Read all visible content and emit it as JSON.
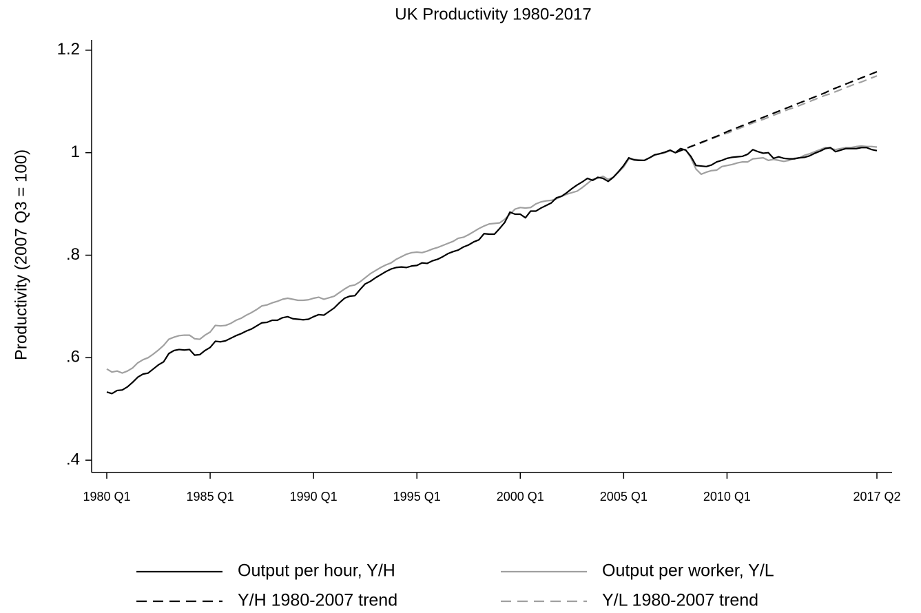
{
  "chart_data": {
    "type": "line",
    "title": "UK Productivity 1980-2017",
    "y_label": "Productivity (2007 Q3 = 100)",
    "categories": [
      "1980 Q1",
      null,
      null,
      null,
      null,
      null,
      null,
      null,
      null,
      null,
      null,
      null,
      null,
      null,
      null,
      null,
      null,
      null,
      null,
      null,
      "1985 Q1",
      null,
      null,
      null,
      null,
      null,
      null,
      null,
      null,
      null,
      null,
      null,
      null,
      null,
      null,
      null,
      null,
      null,
      null,
      null,
      "1990 Q1",
      null,
      null,
      null,
      null,
      null,
      null,
      null,
      null,
      null,
      null,
      null,
      null,
      null,
      null,
      null,
      null,
      null,
      null,
      null,
      "1995 Q1",
      null,
      null,
      null,
      null,
      null,
      null,
      null,
      null,
      null,
      null,
      null,
      null,
      null,
      null,
      null,
      null,
      null,
      null,
      null,
      "2000 Q1",
      null,
      null,
      null,
      null,
      null,
      null,
      null,
      null,
      null,
      null,
      null,
      null,
      null,
      null,
      null,
      null,
      null,
      null,
      null,
      "2005 Q1",
      null,
      null,
      null,
      null,
      null,
      null,
      null,
      null,
      null,
      null,
      null,
      null,
      null,
      null,
      null,
      null,
      null,
      null,
      null,
      "2010 Q1",
      null,
      null,
      null,
      null,
      null,
      null,
      null,
      null,
      null,
      null,
      null,
      null,
      null,
      null,
      null,
      null,
      null,
      null,
      null,
      null,
      null,
      null,
      null,
      null,
      null,
      null,
      null,
      null,
      "2017 Q2"
    ],
    "ylim": [
      0.376,
      1.22
    ],
    "yticks": [
      {
        "value": 0.4,
        "label": ".4"
      },
      {
        "value": 0.6,
        "label": ".6"
      },
      {
        "value": 0.8,
        "label": ".8"
      },
      1,
      1.2
    ],
    "series": [
      {
        "name": "Output per hour, Y/H",
        "color": "#000000",
        "dash": false,
        "values": [
          0.533,
          0.53,
          0.536,
          0.537,
          0.543,
          0.552,
          0.562,
          0.568,
          0.57,
          0.578,
          0.586,
          0.592,
          0.608,
          0.614,
          0.616,
          0.615,
          0.616,
          0.605,
          0.606,
          0.614,
          0.62,
          0.632,
          0.631,
          0.633,
          0.638,
          0.643,
          0.647,
          0.652,
          0.656,
          0.662,
          0.668,
          0.669,
          0.673,
          0.673,
          0.678,
          0.68,
          0.676,
          0.675,
          0.674,
          0.675,
          0.68,
          0.684,
          0.683,
          0.69,
          0.697,
          0.707,
          0.716,
          0.72,
          0.721,
          0.733,
          0.744,
          0.749,
          0.756,
          0.762,
          0.768,
          0.773,
          0.776,
          0.777,
          0.776,
          0.779,
          0.78,
          0.785,
          0.784,
          0.789,
          0.792,
          0.797,
          0.803,
          0.807,
          0.81,
          0.816,
          0.82,
          0.826,
          0.83,
          0.842,
          0.841,
          0.841,
          0.852,
          0.864,
          0.884,
          0.88,
          0.88,
          0.873,
          0.886,
          0.886,
          0.892,
          0.897,
          0.902,
          0.912,
          0.915,
          0.922,
          0.93,
          0.937,
          0.943,
          0.95,
          0.946,
          0.952,
          0.95,
          0.944,
          0.952,
          0.963,
          0.975,
          0.99,
          0.986,
          0.985,
          0.985,
          0.99,
          0.996,
          0.998,
          1.001,
          1.005,
          1.0,
          1.008,
          1.005,
          0.993,
          0.975,
          0.974,
          0.973,
          0.976,
          0.982,
          0.985,
          0.989,
          0.991,
          0.992,
          0.993,
          0.997,
          1.006,
          1.002,
          0.999,
          1.0,
          0.989,
          0.992,
          0.989,
          0.988,
          0.988,
          0.99,
          0.991,
          0.994,
          0.999,
          1.003,
          1.008,
          1.01,
          1.002,
          1.005,
          1.008,
          1.008,
          1.008,
          1.01,
          1.01,
          1.006,
          1.004
        ]
      },
      {
        "name": "Output per worker, Y/L",
        "color": "#a0a0a0",
        "dash": false,
        "values": [
          0.578,
          0.572,
          0.574,
          0.57,
          0.574,
          0.58,
          0.59,
          0.596,
          0.6,
          0.607,
          0.615,
          0.624,
          0.636,
          0.64,
          0.643,
          0.644,
          0.644,
          0.637,
          0.636,
          0.644,
          0.65,
          0.663,
          0.662,
          0.663,
          0.667,
          0.673,
          0.677,
          0.683,
          0.688,
          0.694,
          0.701,
          0.703,
          0.707,
          0.71,
          0.714,
          0.716,
          0.714,
          0.712,
          0.712,
          0.713,
          0.716,
          0.718,
          0.714,
          0.717,
          0.72,
          0.727,
          0.734,
          0.74,
          0.742,
          0.748,
          0.756,
          0.764,
          0.77,
          0.776,
          0.781,
          0.785,
          0.792,
          0.797,
          0.802,
          0.805,
          0.806,
          0.805,
          0.808,
          0.812,
          0.815,
          0.819,
          0.823,
          0.827,
          0.833,
          0.835,
          0.84,
          0.846,
          0.852,
          0.857,
          0.861,
          0.862,
          0.863,
          0.87,
          0.88,
          0.89,
          0.893,
          0.892,
          0.893,
          0.9,
          0.904,
          0.906,
          0.907,
          0.91,
          0.915,
          0.919,
          0.922,
          0.925,
          0.932,
          0.94,
          0.948,
          0.95,
          0.954,
          0.948,
          0.952,
          0.962,
          0.972,
          0.988,
          0.987,
          0.986,
          0.985,
          0.99,
          0.995,
          0.998,
          1.0,
          1.004,
          1.0,
          1.006,
          1.006,
          0.99,
          0.968,
          0.958,
          0.962,
          0.965,
          0.966,
          0.973,
          0.975,
          0.977,
          0.98,
          0.982,
          0.982,
          0.988,
          0.989,
          0.99,
          0.985,
          0.987,
          0.985,
          0.983,
          0.985,
          0.989,
          0.99,
          0.995,
          0.998,
          1.002,
          1.006,
          1.01,
          1.008,
          1.006,
          1.008,
          1.01,
          1.01,
          1.012,
          1.013,
          1.012,
          1.012,
          1.011
        ]
      },
      {
        "name": "Y/H 1980-2007 trend",
        "color": "#000000",
        "dash": true,
        "values": [
          null,
          null,
          null,
          null,
          null,
          null,
          null,
          null,
          null,
          null,
          null,
          null,
          null,
          null,
          null,
          null,
          null,
          null,
          null,
          null,
          null,
          null,
          null,
          null,
          null,
          null,
          null,
          null,
          null,
          null,
          null,
          null,
          null,
          null,
          null,
          null,
          null,
          null,
          null,
          null,
          null,
          null,
          null,
          null,
          null,
          null,
          null,
          null,
          null,
          null,
          null,
          null,
          null,
          null,
          null,
          null,
          null,
          null,
          null,
          null,
          null,
          null,
          null,
          null,
          null,
          null,
          null,
          null,
          null,
          null,
          null,
          null,
          null,
          null,
          null,
          null,
          null,
          null,
          null,
          null,
          null,
          null,
          null,
          null,
          null,
          null,
          null,
          null,
          null,
          null,
          null,
          null,
          null,
          null,
          null,
          null,
          null,
          null,
          null,
          null,
          null,
          null,
          null,
          null,
          null,
          null,
          null,
          null,
          null,
          null,
          1.0,
          1.004,
          1.008,
          1.012,
          1.016,
          1.02,
          1.024,
          1.028,
          1.032,
          1.036,
          1.041,
          1.045,
          1.049,
          1.053,
          1.057,
          1.061,
          1.065,
          1.069,
          1.073,
          1.077,
          1.081,
          1.085,
          1.089,
          1.093,
          1.097,
          1.101,
          1.105,
          1.109,
          1.113,
          1.117,
          1.122,
          1.126,
          1.13,
          1.134,
          1.138,
          1.142,
          1.146,
          1.15,
          1.154,
          1.158
        ]
      },
      {
        "name": "Y/L 1980-2007 trend",
        "color": "#a0a0a0",
        "dash": true,
        "values": [
          null,
          null,
          null,
          null,
          null,
          null,
          null,
          null,
          null,
          null,
          null,
          null,
          null,
          null,
          null,
          null,
          null,
          null,
          null,
          null,
          null,
          null,
          null,
          null,
          null,
          null,
          null,
          null,
          null,
          null,
          null,
          null,
          null,
          null,
          null,
          null,
          null,
          null,
          null,
          null,
          null,
          null,
          null,
          null,
          null,
          null,
          null,
          null,
          null,
          null,
          null,
          null,
          null,
          null,
          null,
          null,
          null,
          null,
          null,
          null,
          null,
          null,
          null,
          null,
          null,
          null,
          null,
          null,
          null,
          null,
          null,
          null,
          null,
          null,
          null,
          null,
          null,
          null,
          null,
          null,
          null,
          null,
          null,
          null,
          null,
          null,
          null,
          null,
          null,
          null,
          null,
          null,
          null,
          null,
          null,
          null,
          null,
          null,
          null,
          null,
          null,
          null,
          null,
          null,
          null,
          null,
          null,
          null,
          null,
          null,
          1.0,
          1.004,
          1.008,
          1.012,
          1.015,
          1.019,
          1.023,
          1.027,
          1.031,
          1.035,
          1.038,
          1.042,
          1.046,
          1.05,
          1.054,
          1.058,
          1.062,
          1.065,
          1.069,
          1.073,
          1.077,
          1.081,
          1.085,
          1.088,
          1.092,
          1.096,
          1.1,
          1.104,
          1.108,
          1.112,
          1.115,
          1.119,
          1.123,
          1.127,
          1.131,
          1.135,
          1.138,
          1.142,
          1.146,
          1.15
        ]
      }
    ]
  }
}
